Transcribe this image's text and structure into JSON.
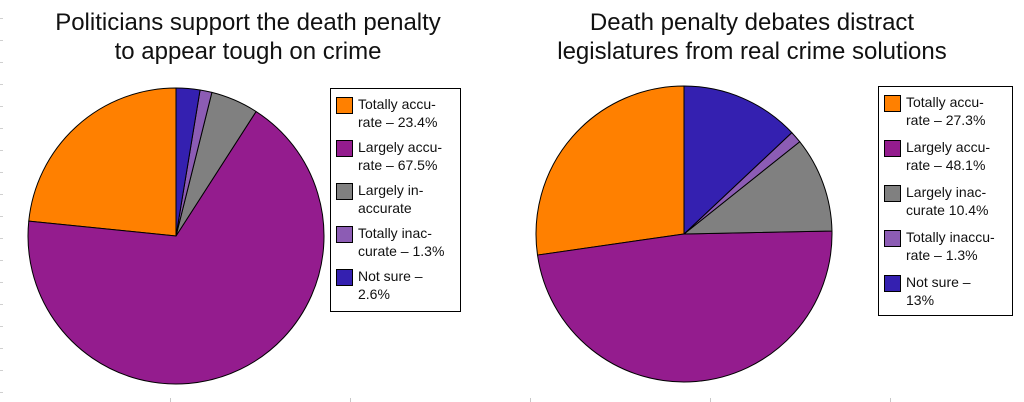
{
  "chart_data": [
    {
      "type": "pie",
      "title": "Politicians support the death penalty\nto appear tough on crime",
      "slices": [
        {
          "label": "Totally accu-\nrate – 23.4%",
          "value": 23.4,
          "color": "#ff8000"
        },
        {
          "label": "Largely accu-\nrate – 67.5%",
          "value": 67.5,
          "color": "#941c8e"
        },
        {
          "label": "Largely in-\naccurate",
          "value": 5.2,
          "color": "#808080"
        },
        {
          "label": "Totally inac-\ncurate – 1.3%",
          "value": 1.3,
          "color": "#8c5cb4"
        },
        {
          "label": "Not sure –\n2.6%",
          "value": 2.6,
          "color": "#3420b0"
        }
      ],
      "legend_position": "right"
    },
    {
      "type": "pie",
      "title": "Death penalty debates distract\nlegislatures from real crime solutions",
      "slices": [
        {
          "label": "Totally accu-\nrate – 27.3%",
          "value": 27.3,
          "color": "#ff8000"
        },
        {
          "label": "Largely accu-\nrate – 48.1%",
          "value": 48.1,
          "color": "#941c8e"
        },
        {
          "label": "Largely inac-\ncurate 10.4%",
          "value": 10.4,
          "color": "#808080"
        },
        {
          "label": "Totally inaccu-\nrate – 1.3%",
          "value": 1.3,
          "color": "#8c5cb4"
        },
        {
          "label": "Not sure –\n13%",
          "value": 13,
          "color": "#3420b0"
        }
      ],
      "legend_position": "right"
    }
  ]
}
